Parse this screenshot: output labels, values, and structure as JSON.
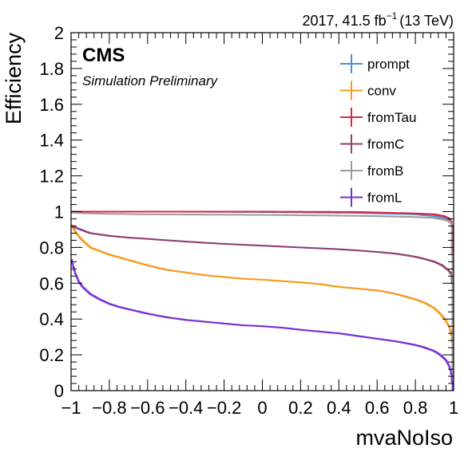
{
  "chart_data": {
    "type": "line",
    "xlabel": "mvaNoIso",
    "ylabel": "Efficiency",
    "xlim": [
      -1,
      1
    ],
    "ylim": [
      0,
      2
    ],
    "x_ticks": [
      "−1",
      "−0.8",
      "−0.6",
      "−0.4",
      "−0.2",
      "0",
      "0.2",
      "0.4",
      "0.6",
      "0.8",
      "1"
    ],
    "y_ticks": [
      "0",
      "0.2",
      "0.4",
      "0.6",
      "0.8",
      "1",
      "1.2",
      "1.4",
      "1.6",
      "1.8",
      "2"
    ],
    "grid": false,
    "legend_position": "top-right",
    "cms_label": "CMS",
    "extra_label": "Simulation Preliminary",
    "lumi_label": "2017, 41.5 fb",
    "lumi_sup": "−1",
    "lumi_energy": "(13 TeV)",
    "series": [
      {
        "name": "prompt",
        "color": "#4a90d9",
        "x": [
          -1.0,
          -0.5,
          0.0,
          0.5,
          0.8,
          0.9,
          0.95,
          0.98,
          0.99,
          0.995
        ],
        "y": [
          1.0,
          1.0,
          0.998,
          0.993,
          0.985,
          0.975,
          0.965,
          0.95,
          0.93,
          0.92
        ]
      },
      {
        "name": "conv",
        "color": "#f59a1e",
        "x": [
          -1.0,
          -0.98,
          -0.95,
          -0.9,
          -0.85,
          -0.8,
          -0.7,
          -0.6,
          -0.5,
          -0.4,
          -0.3,
          -0.2,
          -0.1,
          0.0,
          0.1,
          0.2,
          0.3,
          0.4,
          0.5,
          0.6,
          0.7,
          0.8,
          0.85,
          0.9,
          0.93,
          0.96,
          0.98,
          0.99,
          0.995
        ],
        "y": [
          0.93,
          0.89,
          0.85,
          0.8,
          0.78,
          0.76,
          0.73,
          0.7,
          0.675,
          0.66,
          0.645,
          0.635,
          0.625,
          0.62,
          0.612,
          0.605,
          0.595,
          0.58,
          0.57,
          0.56,
          0.54,
          0.51,
          0.49,
          0.46,
          0.43,
          0.39,
          0.35,
          0.3,
          0.25
        ]
      },
      {
        "name": "fromTau",
        "color": "#d7263d",
        "x": [
          -1.0,
          -0.5,
          0.0,
          0.5,
          0.8,
          0.9,
          0.95,
          0.98,
          0.99,
          0.995
        ],
        "y": [
          1.0,
          1.0,
          1.0,
          0.998,
          0.99,
          0.985,
          0.975,
          0.96,
          0.94,
          0.9
        ]
      },
      {
        "name": "fromC",
        "color": "#8e3f74",
        "x": [
          -1.0,
          -0.95,
          -0.9,
          -0.8,
          -0.7,
          -0.6,
          -0.5,
          -0.4,
          -0.3,
          -0.2,
          -0.1,
          0.0,
          0.1,
          0.2,
          0.3,
          0.4,
          0.5,
          0.6,
          0.7,
          0.8,
          0.85,
          0.9,
          0.94,
          0.97,
          0.99,
          0.995
        ],
        "y": [
          0.92,
          0.9,
          0.88,
          0.865,
          0.855,
          0.848,
          0.84,
          0.833,
          0.826,
          0.82,
          0.815,
          0.81,
          0.805,
          0.8,
          0.795,
          0.79,
          0.783,
          0.775,
          0.765,
          0.748,
          0.735,
          0.72,
          0.7,
          0.675,
          0.65,
          0.55
        ]
      },
      {
        "name": "fromB",
        "color": "#9b9b9b",
        "x": [
          -1.0,
          -0.9,
          -0.8,
          -0.6,
          -0.4,
          -0.2,
          0.0,
          0.2,
          0.4,
          0.6,
          0.8,
          0.9,
          0.95,
          0.98,
          0.99,
          0.995
        ],
        "y": [
          0.995,
          0.99,
          0.988,
          0.985,
          0.984,
          0.983,
          0.982,
          0.98,
          0.978,
          0.975,
          0.97,
          0.965,
          0.955,
          0.945,
          0.93,
          0.6
        ]
      },
      {
        "name": "fromL",
        "color": "#7a2fd6",
        "x": [
          -1.0,
          -0.98,
          -0.96,
          -0.94,
          -0.92,
          -0.9,
          -0.85,
          -0.8,
          -0.75,
          -0.7,
          -0.6,
          -0.5,
          -0.4,
          -0.3,
          -0.2,
          -0.1,
          0.0,
          0.1,
          0.2,
          0.3,
          0.4,
          0.5,
          0.6,
          0.7,
          0.75,
          0.8,
          0.85,
          0.9,
          0.93,
          0.96,
          0.98,
          0.99,
          0.995
        ],
        "y": [
          0.74,
          0.66,
          0.61,
          0.58,
          0.56,
          0.54,
          0.51,
          0.485,
          0.468,
          0.455,
          0.43,
          0.41,
          0.395,
          0.385,
          0.375,
          0.365,
          0.36,
          0.352,
          0.34,
          0.33,
          0.32,
          0.305,
          0.29,
          0.275,
          0.265,
          0.255,
          0.24,
          0.22,
          0.2,
          0.17,
          0.13,
          0.08,
          0.02
        ]
      }
    ]
  }
}
